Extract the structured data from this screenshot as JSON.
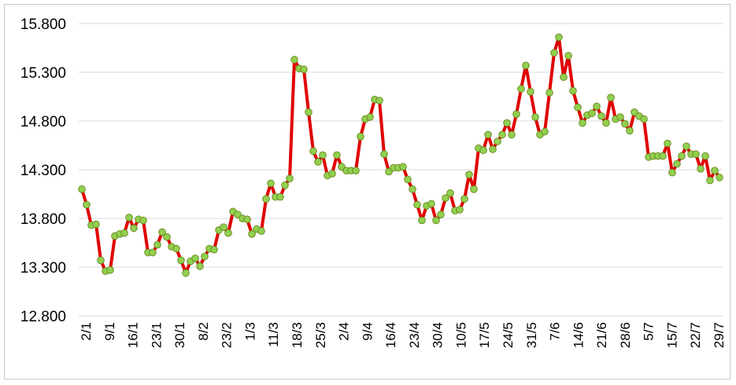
{
  "chart_data": {
    "type": "line",
    "title": "",
    "xlabel": "",
    "ylabel": "",
    "ylim": [
      12800,
      15800
    ],
    "y_ticks": [
      "12.800",
      "13.300",
      "13.800",
      "14.300",
      "14.800",
      "15.300",
      "15.800"
    ],
    "y_tick_values": [
      12800,
      13300,
      13800,
      14300,
      14800,
      15300,
      15800
    ],
    "x_tick_labels": [
      "2/1",
      "9/1",
      "16/1",
      "23/1",
      "30/1",
      "8/2",
      "23/2",
      "1/3",
      "11/3",
      "18/3",
      "25/3",
      "2/4",
      "9/4",
      "16/4",
      "23/4",
      "30/4",
      "10/5",
      "17/5",
      "24/5",
      "31/5",
      "7/6",
      "14/6",
      "21/6",
      "28/6",
      "5/7",
      "15/7",
      "22/7",
      "29/7"
    ],
    "grid": true,
    "legend": "none",
    "line_color": "#e00000",
    "marker_fill": "#92d050",
    "marker_stroke": "#6b8e23",
    "series": [
      {
        "values": [
          14100,
          13940,
          13730,
          13740,
          13370,
          13260,
          13270,
          13620,
          13640,
          13650,
          13810,
          13700,
          13790,
          13780,
          13450,
          13450,
          13530,
          13660,
          13610,
          13510,
          13490,
          13370,
          13240,
          13360,
          13390,
          13310,
          13410,
          13490,
          13480,
          13680,
          13710,
          13650,
          13870,
          13840,
          13800,
          13790,
          13640,
          13690,
          13670,
          14000,
          14160,
          14020,
          14020,
          14140,
          14210,
          15430,
          15340,
          15330,
          14890,
          14490,
          14380,
          14450,
          14240,
          14260,
          14450,
          14330,
          14290,
          14290,
          14290,
          14640,
          14820,
          14840,
          15020,
          15010,
          14460,
          14280,
          14320,
          14320,
          14330,
          14200,
          14100,
          13940,
          13780,
          13930,
          13950,
          13780,
          13840,
          14010,
          14060,
          13880,
          13890,
          14000,
          14250,
          14100,
          14520,
          14500,
          14660,
          14510,
          14590,
          14660,
          14780,
          14660,
          14870,
          15130,
          15370,
          15100,
          14840,
          14660,
          14690,
          15090,
          15500,
          15660,
          15250,
          15470,
          15110,
          14940,
          14780,
          14860,
          14880,
          14950,
          14850,
          14780,
          15040,
          14820,
          14840,
          14770,
          14700,
          14890,
          14850,
          14820,
          14430,
          14440,
          14440,
          14440,
          14570,
          14270,
          14360,
          14440,
          14540,
          14460,
          14460,
          14310,
          14440,
          14190,
          14290,
          14220
        ]
      }
    ]
  }
}
